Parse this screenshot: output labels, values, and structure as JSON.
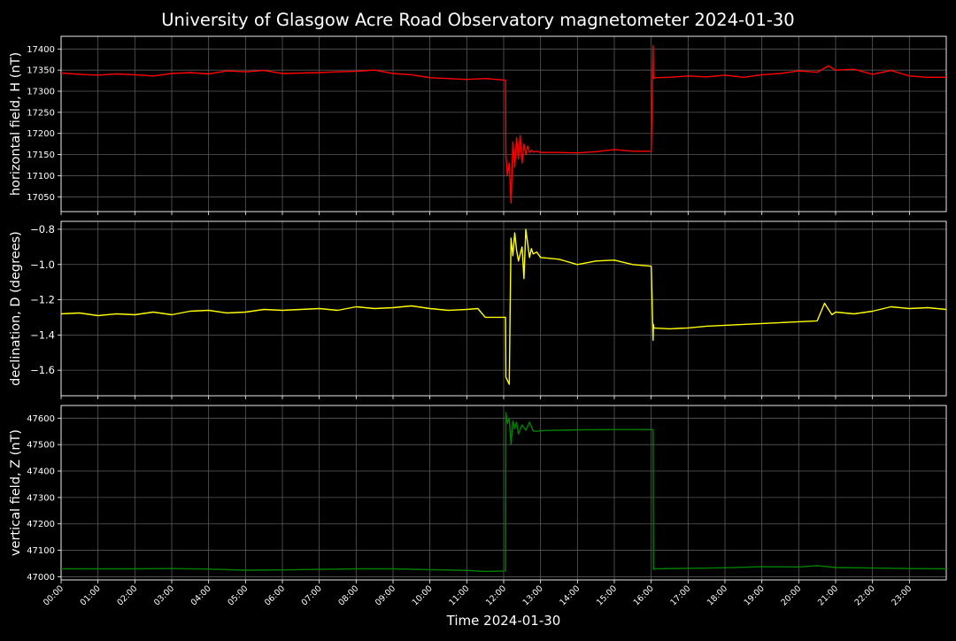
{
  "title": "University of Glasgow Acre Road Observatory magnetometer 2024-01-30",
  "xlabel": "Time 2024-01-30",
  "xticks": [
    "00:00",
    "01:00",
    "02:00",
    "03:00",
    "04:00",
    "05:00",
    "06:00",
    "07:00",
    "08:00",
    "09:00",
    "10:00",
    "11:00",
    "12:00",
    "13:00",
    "14:00",
    "15:00",
    "16:00",
    "17:00",
    "18:00",
    "19:00",
    "20:00",
    "21:00",
    "22:00",
    "23:00"
  ],
  "chart_data": [
    {
      "type": "line",
      "name": "H",
      "ylabel": "horizontal field, H (nT)",
      "color": "#ff0000",
      "xlim": [
        0,
        24
      ],
      "ylim": [
        17015,
        17430
      ],
      "yticks": [
        17050,
        17100,
        17150,
        17200,
        17250,
        17300,
        17350,
        17400
      ],
      "grid": true,
      "x": [
        0,
        0.5,
        1,
        1.5,
        2,
        2.5,
        3,
        3.5,
        4,
        4.5,
        5,
        5.5,
        6,
        6.5,
        7,
        7.5,
        8,
        8.5,
        9,
        9.5,
        10,
        10.5,
        11,
        11.5,
        12.05,
        12.06,
        12.1,
        12.15,
        12.2,
        12.25,
        12.3,
        12.35,
        12.4,
        12.45,
        12.5,
        12.55,
        12.6,
        12.65,
        12.7,
        12.75,
        12.8,
        12.9,
        13,
        13.5,
        14,
        14.5,
        15,
        15.5,
        16,
        16.05,
        16.06,
        16.07,
        16.5,
        17,
        17.5,
        18,
        18.5,
        19,
        19.5,
        20,
        20.5,
        20.8,
        21,
        21.5,
        22,
        22.5,
        23,
        23.5,
        24
      ],
      "values": [
        17343,
        17340,
        17338,
        17341,
        17339,
        17336,
        17342,
        17344,
        17341,
        17348,
        17346,
        17349,
        17342,
        17343,
        17344,
        17346,
        17347,
        17350,
        17342,
        17339,
        17332,
        17330,
        17328,
        17330,
        17326,
        17150,
        17100,
        17130,
        17035,
        17180,
        17120,
        17190,
        17140,
        17195,
        17130,
        17175,
        17150,
        17170,
        17155,
        17160,
        17156,
        17158,
        17155,
        17155,
        17154,
        17157,
        17162,
        17158,
        17158,
        17408,
        17330,
        17332,
        17333,
        17336,
        17334,
        17338,
        17333,
        17339,
        17342,
        17348,
        17345,
        17360,
        17350,
        17352,
        17340,
        17349,
        17336,
        17333,
        17333
      ]
    },
    {
      "type": "line",
      "name": "D",
      "ylabel": "declination, D (degrees)",
      "color": "#ffff00",
      "xlim": [
        0,
        24
      ],
      "ylim": [
        -1.745,
        -0.755
      ],
      "yticks": [
        -1.6,
        -1.4,
        -1.2,
        -1.0,
        -0.8
      ],
      "grid": true,
      "x": [
        0,
        0.5,
        1,
        1.5,
        2,
        2.5,
        3,
        3.5,
        4,
        4.5,
        5,
        5.5,
        6,
        6.5,
        7,
        7.5,
        8,
        8.5,
        9,
        9.5,
        10,
        10.5,
        11,
        11.3,
        11.5,
        12.05,
        12.06,
        12.15,
        12.2,
        12.25,
        12.3,
        12.35,
        12.4,
        12.5,
        12.55,
        12.6,
        12.7,
        12.75,
        12.8,
        12.9,
        13,
        13.5,
        14,
        14.5,
        15,
        15.5,
        16,
        16.05,
        16.06,
        16.07,
        16.5,
        17,
        17.5,
        18,
        18.5,
        19,
        19.5,
        20,
        20.5,
        20.7,
        20.9,
        21,
        21.5,
        22,
        22.5,
        23,
        23.5,
        24
      ],
      "values": [
        -1.28,
        -1.275,
        -1.29,
        -1.28,
        -1.285,
        -1.27,
        -1.285,
        -1.265,
        -1.26,
        -1.275,
        -1.27,
        -1.255,
        -1.26,
        -1.255,
        -1.25,
        -1.26,
        -1.24,
        -1.25,
        -1.245,
        -1.235,
        -1.25,
        -1.26,
        -1.255,
        -1.25,
        -1.3,
        -1.3,
        -1.64,
        -1.68,
        -0.85,
        -0.95,
        -0.82,
        -0.92,
        -0.98,
        -0.9,
        -1.08,
        -0.8,
        -0.96,
        -0.91,
        -0.94,
        -0.93,
        -0.96,
        -0.97,
        -1.0,
        -0.98,
        -0.975,
        -1.0,
        -1.01,
        -1.43,
        -1.34,
        -1.36,
        -1.365,
        -1.36,
        -1.35,
        -1.345,
        -1.34,
        -1.335,
        -1.33,
        -1.325,
        -1.32,
        -1.22,
        -1.285,
        -1.27,
        -1.28,
        -1.265,
        -1.24,
        -1.25,
        -1.245,
        -1.255
      ]
    },
    {
      "type": "line",
      "name": "Z",
      "ylabel": "vertical field, Z (nT)",
      "color": "#008000",
      "xlim": [
        0,
        24
      ],
      "ylim": [
        46988,
        47648
      ],
      "yticks": [
        47000,
        47100,
        47200,
        47300,
        47400,
        47500,
        47600
      ],
      "grid": true,
      "x": [
        0,
        1,
        2,
        3,
        4,
        4.5,
        5,
        6,
        7,
        8,
        9,
        10,
        11,
        11.5,
        12.05,
        12.06,
        12.1,
        12.15,
        12.2,
        12.25,
        12.3,
        12.35,
        12.4,
        12.5,
        12.6,
        12.7,
        12.8,
        12.9,
        13,
        14,
        15,
        16,
        16.05,
        16.06,
        16.07,
        17,
        18,
        19,
        20,
        20.5,
        21,
        22,
        23,
        24
      ],
      "values": [
        47030,
        47030,
        47030,
        47031,
        47029,
        47027,
        47025,
        47026,
        47028,
        47030,
        47030,
        47027,
        47024,
        47020,
        47022,
        47622,
        47580,
        47600,
        47500,
        47590,
        47560,
        47585,
        47540,
        47575,
        47555,
        47585,
        47552,
        47550,
        47553,
        47556,
        47557,
        47557,
        47557,
        47028,
        47030,
        47032,
        47034,
        47038,
        47037,
        47042,
        47035,
        47033,
        47031,
        47030
      ]
    }
  ]
}
